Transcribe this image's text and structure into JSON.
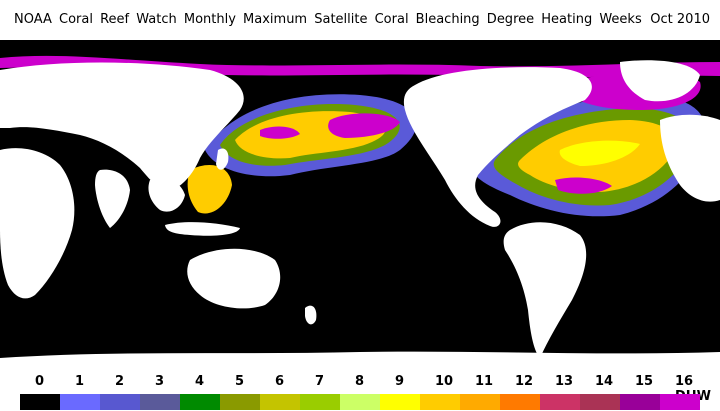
{
  "header": {
    "title": "NOAA Coral Reef Watch Monthly Maximum Satellite Coral Bleaching Degree Heating Weeks",
    "date": "Oct 2010"
  },
  "legend": {
    "ticks": [
      "0",
      "1",
      "2",
      "3",
      "4",
      "5",
      "6",
      "7",
      "8",
      "9",
      "10",
      "11",
      "12",
      "13",
      "14",
      "15",
      "16 DHW"
    ],
    "colors": [
      "#000000",
      "#6a6aff",
      "#5858d0",
      "#5a5a9a",
      "#008a00",
      "#8a9a00",
      "#c4c400",
      "#9acd00",
      "#ccff66",
      "#ffff00",
      "#ffcc00",
      "#ffaa00",
      "#ff7a00",
      "#cc3366",
      "#aa3355",
      "#990099",
      "#cc00cc"
    ]
  },
  "map_colors": {
    "ocean": "#000000",
    "land": "#ffffff",
    "dhw_high": "#cc00cc",
    "dhw_mid": "#ffcc00",
    "dhw_low": "#5a5ad8",
    "dhw_green": "#6a9a00",
    "dhw_yellow": "#ffff00"
  }
}
